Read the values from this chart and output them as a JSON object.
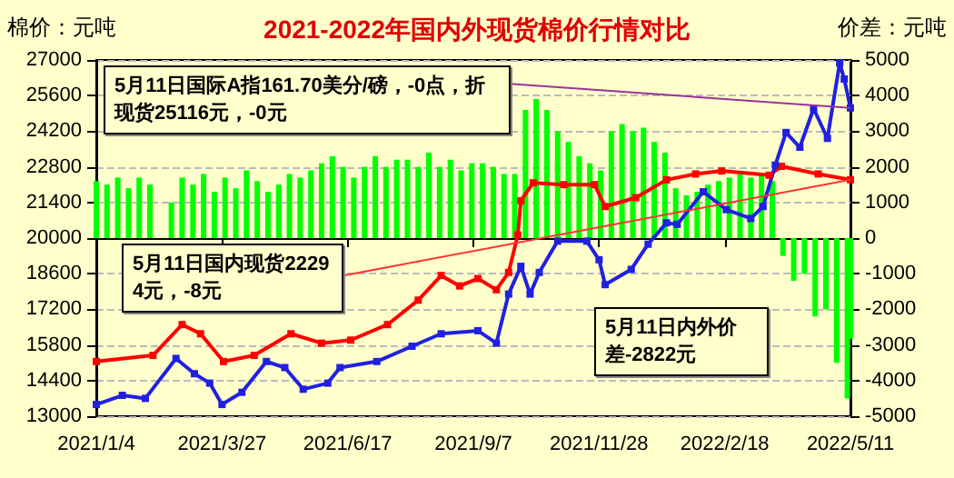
{
  "chart_data": {
    "type": "line",
    "title": "2021-2022年国内外现货棉价行情对比",
    "ylabel": "棉价：元吨",
    "y2label": "价差：元吨",
    "xlim": [
      "2021-01-04",
      "2022-05-11"
    ],
    "xticks": [
      {
        "value": "2021-01-04",
        "label": "2021/1/4"
      },
      {
        "value": "2021-03-27",
        "label": "2021/3/27"
      },
      {
        "value": "2021-06-17",
        "label": "2021/6/17"
      },
      {
        "value": "2021-09-07",
        "label": "2021/9/7"
      },
      {
        "value": "2021-11-28",
        "label": "2021/11/28"
      },
      {
        "value": "2022-02-18",
        "label": "2022/2/18"
      },
      {
        "value": "2022-05-11",
        "label": "2022/5/11"
      }
    ],
    "ylim": [
      13000,
      27000
    ],
    "yticks": [
      13000,
      14400,
      15800,
      17200,
      18600,
      20000,
      21400,
      22800,
      24200,
      25600,
      27000
    ],
    "y2lim": [
      -5000,
      5000
    ],
    "y2ticks": [
      -5000,
      -4000,
      -3000,
      -2000,
      -1000,
      0,
      1000,
      2000,
      3000,
      4000,
      5000
    ],
    "grid": "y",
    "marker": "square",
    "series": [
      {
        "type": "bar",
        "axis": "y2",
        "color": "#00ff00",
        "x": [
          "2021-01-04",
          "2021-01-11",
          "2021-01-18",
          "2021-01-25",
          "2021-02-01",
          "2021-02-08",
          "2021-02-15",
          "2021-02-22",
          "2021-03-01",
          "2021-03-08",
          "2021-03-15",
          "2021-03-22",
          "2021-03-29",
          "2021-04-05",
          "2021-04-12",
          "2021-04-19",
          "2021-04-26",
          "2021-05-03",
          "2021-05-10",
          "2021-05-17",
          "2021-05-24",
          "2021-05-31",
          "2021-06-07",
          "2021-06-14",
          "2021-06-21",
          "2021-06-28",
          "2021-07-05",
          "2021-07-12",
          "2021-07-19",
          "2021-07-26",
          "2021-08-02",
          "2021-08-09",
          "2021-08-16",
          "2021-08-23",
          "2021-08-30",
          "2021-09-06",
          "2021-09-13",
          "2021-09-20",
          "2021-09-27",
          "2021-10-04",
          "2021-10-11",
          "2021-10-18",
          "2021-10-25",
          "2021-11-01",
          "2021-11-08",
          "2021-11-15",
          "2021-11-22",
          "2021-11-29",
          "2021-12-06",
          "2021-12-13",
          "2021-12-20",
          "2021-12-27",
          "2022-01-03",
          "2022-01-10",
          "2022-01-17",
          "2022-01-24",
          "2022-01-31",
          "2022-02-07",
          "2022-02-14",
          "2022-02-21",
          "2022-02-28",
          "2022-03-07",
          "2022-03-14",
          "2022-03-21",
          "2022-03-28",
          "2022-04-04",
          "2022-04-11",
          "2022-04-18",
          "2022-04-25",
          "2022-05-02",
          "2022-05-09",
          "2022-05-11"
        ],
        "values": [
          1600,
          1500,
          1700,
          1400,
          1700,
          1500,
          null,
          1000,
          1700,
          1500,
          1800,
          1300,
          1700,
          1400,
          1900,
          1600,
          1300,
          1500,
          1800,
          1700,
          1900,
          2100,
          2300,
          2000,
          1700,
          2000,
          2300,
          2000,
          2200,
          2200,
          2000,
          2400,
          2000,
          2200,
          1900,
          2100,
          2100,
          2000,
          1800,
          1800,
          3600,
          3900,
          3600,
          3000,
          2700,
          2300,
          2100,
          1900,
          3000,
          3200,
          3000,
          3100,
          2700,
          2400,
          1400,
          1200,
          1300,
          1500,
          1600,
          1700,
          1800,
          1700,
          1800,
          1600,
          -500,
          -1200,
          -1000,
          -2200,
          -2000,
          -3500,
          -4500,
          -2822
        ]
      },
      {
        "color": "#ff0000",
        "x": [
          "2021-01-04",
          "2021-02-10",
          "2021-03-01",
          "2021-03-13",
          "2021-03-28",
          "2021-04-17",
          "2021-05-11",
          "2021-05-31",
          "2021-06-19",
          "2021-07-13",
          "2021-08-02",
          "2021-08-17",
          "2021-08-29",
          "2021-09-10",
          "2021-09-22",
          "2021-09-30",
          "2021-10-06",
          "2021-10-08",
          "2021-10-16",
          "2021-11-05",
          "2021-11-25",
          "2021-12-02",
          "2021-12-22",
          "2022-01-11",
          "2022-01-30",
          "2022-02-16",
          "2022-03-19",
          "2022-03-27",
          "2022-04-20",
          "2022-05-11"
        ],
        "values": [
          15150,
          15390,
          16600,
          16240,
          15150,
          15390,
          16240,
          15870,
          15990,
          16600,
          17560,
          18530,
          18120,
          18410,
          17970,
          18650,
          20120,
          21470,
          22170,
          22100,
          22100,
          21240,
          21590,
          22290,
          22520,
          22640,
          22470,
          22820,
          22520,
          22294
        ]
      },
      {
        "color": "#2020e0",
        "x": [
          "2021-01-04",
          "2021-01-21",
          "2021-02-05",
          "2021-02-25",
          "2021-03-09",
          "2021-03-19",
          "2021-03-27",
          "2021-04-09",
          "2021-04-25",
          "2021-05-07",
          "2021-05-19",
          "2021-06-04",
          "2021-06-12",
          "2021-07-06",
          "2021-07-29",
          "2021-08-17",
          "2021-09-10",
          "2021-09-22",
          "2021-09-30",
          "2021-10-08",
          "2021-10-14",
          "2021-10-20",
          "2021-11-01",
          "2021-11-20",
          "2021-11-28",
          "2021-12-02",
          "2021-12-19",
          "2021-12-30",
          "2022-01-11",
          "2022-01-18",
          "2022-02-04",
          "2022-02-19",
          "2022-03-07",
          "2022-03-15",
          "2022-03-23",
          "2022-03-30",
          "2022-04-08",
          "2022-04-17",
          "2022-04-26",
          "2022-05-04",
          "2022-05-07",
          "2022-05-11"
        ],
        "values": [
          13460,
          13820,
          13700,
          15270,
          14670,
          14300,
          13460,
          13940,
          15150,
          14910,
          14060,
          14300,
          14910,
          15150,
          15750,
          16240,
          16360,
          15870,
          17800,
          18890,
          17800,
          18650,
          19880,
          19880,
          19150,
          18170,
          18770,
          19760,
          20600,
          20540,
          21820,
          21120,
          20770,
          21240,
          22870,
          24150,
          23570,
          25090,
          23920,
          26880,
          26250,
          25116
        ]
      }
    ],
    "annotations": [
      {
        "text": "5月11日国际A指161.70美分/磅，-0点，折现货25116元，-0元",
        "x": "2022-05-11",
        "y": 25116
      },
      {
        "text": "5月11日国内现货22294元，-8元",
        "x": "2022-05-11",
        "y": 22294
      },
      "5月11日内外价差-2822元"
    ]
  }
}
